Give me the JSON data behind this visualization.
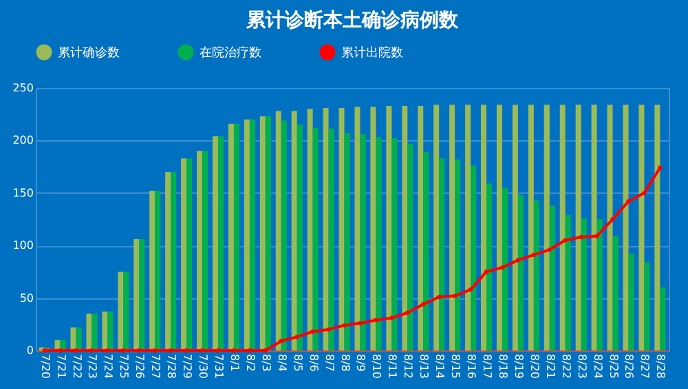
{
  "chart_data": {
    "type": "bar",
    "title": "累计诊断本土确诊病例数",
    "categories": [
      "7/20",
      "7/21",
      "7/22",
      "7/23",
      "7/24",
      "7/25",
      "7/26",
      "7/27",
      "7/28",
      "7/29",
      "7/30",
      "7/31",
      "8/1",
      "8/2",
      "8/3",
      "8/4",
      "8/5",
      "8/6",
      "8/7",
      "8/8",
      "8/9",
      "8/10",
      "8/11",
      "8/12",
      "8/13",
      "8/14",
      "8/15",
      "8/16",
      "8/17",
      "8/18",
      "8/19",
      "8/20",
      "8/21",
      "8/22",
      "8/23",
      "8/24",
      "8/25",
      "8/26",
      "8/27",
      "8/28"
    ],
    "series": [
      {
        "name": "累计确诊数",
        "color": "#9bbb59",
        "values": [
          3,
          10,
          22,
          35,
          37,
          75,
          106,
          152,
          170,
          183,
          190,
          204,
          216,
          220,
          223,
          228,
          228,
          230,
          231,
          231,
          232,
          232,
          233,
          233,
          233,
          234,
          234,
          234,
          234,
          234,
          234,
          234,
          234,
          234,
          234,
          234,
          234,
          234,
          234,
          234
        ]
      },
      {
        "name": "在院治疗数",
        "color": "#00b050",
        "values": [
          3,
          10,
          22,
          35,
          37,
          75,
          106,
          152,
          170,
          183,
          190,
          204,
          216,
          220,
          223,
          219,
          215,
          212,
          211,
          207,
          206,
          203,
          202,
          197,
          189,
          183,
          182,
          176,
          159,
          155,
          148,
          143,
          138,
          129,
          126,
          125,
          109,
          92,
          84,
          60
        ]
      },
      {
        "name": "累计出院数",
        "type": "line",
        "color": "#ff0000",
        "values": [
          0,
          0,
          0,
          0,
          0,
          0,
          0,
          0,
          0,
          0,
          0,
          0,
          0,
          0,
          0,
          9,
          13,
          18,
          20,
          24,
          26,
          29,
          31,
          36,
          44,
          51,
          52,
          58,
          75,
          79,
          86,
          91,
          96,
          105,
          108,
          109,
          125,
          142,
          150,
          174
        ]
      }
    ],
    "ylim": [
      0,
      250
    ],
    "yticks": [
      0,
      50,
      100,
      150,
      200,
      250
    ],
    "grid": "y",
    "legend": "top",
    "marker": "circle"
  }
}
